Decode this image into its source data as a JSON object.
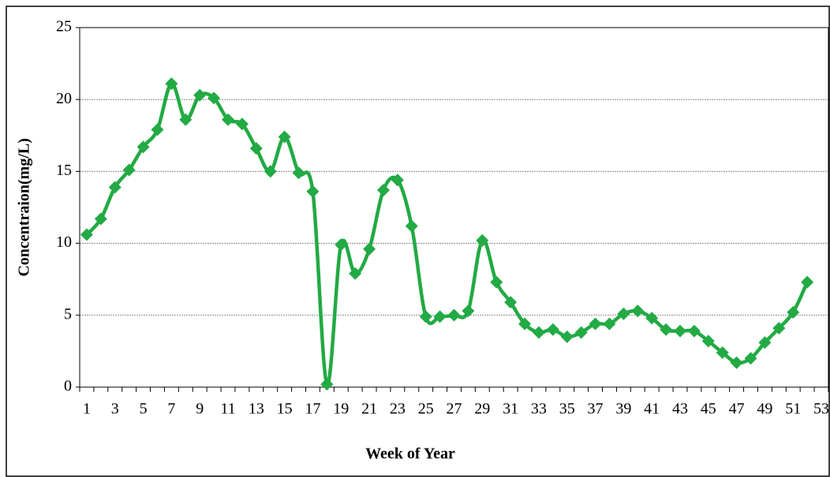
{
  "chart_data": {
    "type": "line",
    "x_label": "Week of Year",
    "y_label": "Concentraion(mg/L)",
    "categories": [
      1,
      null,
      3,
      null,
      5,
      null,
      7,
      null,
      9,
      null,
      11,
      null,
      13,
      null,
      15,
      null,
      17,
      null,
      19,
      null,
      21,
      null,
      23,
      null,
      25,
      null,
      27,
      null,
      29,
      null,
      31,
      null,
      33,
      null,
      35,
      null,
      37,
      null,
      39,
      null,
      41,
      null,
      43,
      null,
      45,
      null,
      47,
      null,
      49,
      null,
      51,
      null,
      53
    ],
    "series": [
      {
        "color": "#22aa44",
        "values": [
          10.6,
          11.7,
          13.9,
          15.1,
          16.7,
          17.9,
          21.1,
          18.6,
          20.3,
          20.1,
          18.6,
          18.3,
          16.6,
          15.0,
          17.4,
          14.9,
          13.6,
          0.2,
          9.9,
          7.9,
          9.6,
          13.7,
          14.4,
          11.2,
          4.9,
          4.9,
          5.0,
          5.3,
          10.2,
          7.3,
          5.9,
          4.4,
          3.8,
          4.0,
          3.5,
          3.8,
          4.4,
          4.4,
          5.1,
          5.3,
          4.8,
          4.0,
          3.9,
          3.9,
          3.2,
          2.4,
          1.7,
          2.0,
          3.1,
          4.1,
          5.2,
          7.3,
          null
        ]
      }
    ],
    "ylim": [
      0,
      25
    ],
    "yticks": [
      0,
      5,
      10,
      15,
      20,
      25
    ],
    "grid": true
  }
}
